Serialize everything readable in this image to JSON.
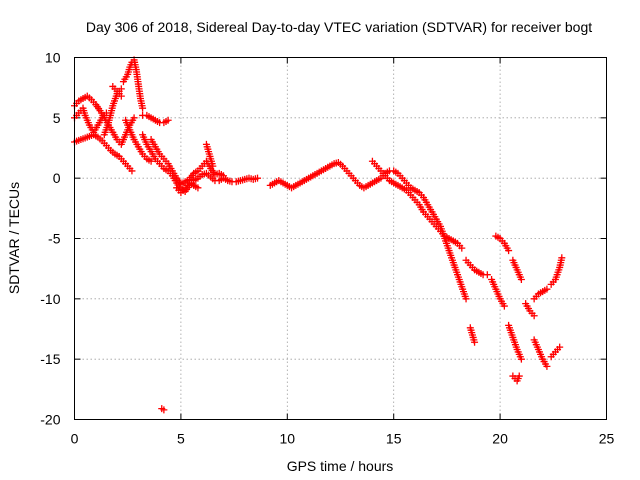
{
  "chart_data": {
    "type": "scatter",
    "title": "Day 306 of 2018, Sidereal Day-to-day VTEC variation (SDTVAR) for receiver bogt",
    "xlabel": "GPS time / hours",
    "ylabel": "SDTVAR / TECUs",
    "xlim": [
      0,
      25
    ],
    "ylim": [
      -20,
      10
    ],
    "xticks": [
      0,
      5,
      10,
      15,
      20,
      25
    ],
    "yticks": [
      10,
      5,
      0,
      -5,
      -10,
      -15,
      -20
    ],
    "grid": true,
    "marker": "+",
    "color": "#ff0000",
    "series": [
      {
        "name": "SDTVAR",
        "segments": [
          [
            [
              0.0,
              3.0
            ],
            [
              0.3,
              3.2
            ],
            [
              0.6,
              3.4
            ],
            [
              0.9,
              3.6
            ],
            [
              1.1,
              3.4
            ],
            [
              1.3,
              3.1
            ],
            [
              1.5,
              2.7
            ],
            [
              1.7,
              2.3
            ],
            [
              1.9,
              2.0
            ],
            [
              2.1,
              1.8
            ],
            [
              2.3,
              1.4
            ],
            [
              2.5,
              1.0
            ],
            [
              2.7,
              0.6
            ]
          ],
          [
            [
              0.0,
              6.0
            ],
            [
              0.2,
              6.4
            ],
            [
              0.4,
              6.6
            ],
            [
              0.6,
              6.8
            ],
            [
              0.8,
              6.5
            ],
            [
              1.0,
              6.1
            ],
            [
              1.2,
              5.6
            ],
            [
              1.4,
              5.0
            ],
            [
              1.6,
              4.4
            ],
            [
              1.8,
              3.8
            ],
            [
              2.0,
              3.2
            ],
            [
              2.2,
              2.8
            ],
            [
              2.4,
              3.6
            ],
            [
              2.6,
              4.4
            ],
            [
              2.8,
              5.0
            ]
          ],
          [
            [
              0.0,
              5.0
            ],
            [
              0.2,
              5.4
            ],
            [
              0.4,
              5.8
            ],
            [
              0.5,
              5.2
            ],
            [
              0.7,
              4.4
            ],
            [
              0.9,
              3.8
            ],
            [
              1.1,
              4.4
            ],
            [
              1.3,
              5.0
            ],
            [
              1.5,
              5.4
            ]
          ],
          [
            [
              1.4,
              3.6
            ],
            [
              1.6,
              4.6
            ],
            [
              1.8,
              6.0
            ],
            [
              2.0,
              7.0
            ],
            [
              2.2,
              7.4
            ]
          ],
          [
            [
              1.8,
              7.6
            ],
            [
              2.0,
              7.2
            ],
            [
              2.2,
              6.8
            ]
          ],
          [
            [
              2.3,
              8.0
            ],
            [
              2.5,
              8.6
            ],
            [
              2.6,
              9.2
            ],
            [
              2.7,
              9.6
            ],
            [
              2.8,
              9.8
            ],
            [
              2.9,
              9.0
            ],
            [
              3.0,
              7.8
            ],
            [
              3.1,
              6.6
            ],
            [
              3.2,
              5.8
            ]
          ],
          [
            [
              3.2,
              5.2
            ],
            [
              3.4,
              5.2
            ],
            [
              3.6,
              5.0
            ],
            [
              3.8,
              4.8
            ],
            [
              4.0,
              4.6
            ],
            [
              4.2,
              4.6
            ],
            [
              4.4,
              4.8
            ]
          ],
          [
            [
              2.4,
              4.8
            ],
            [
              2.6,
              4.0
            ],
            [
              2.8,
              3.2
            ],
            [
              3.0,
              2.6
            ],
            [
              3.2,
              2.0
            ],
            [
              3.4,
              1.6
            ],
            [
              3.6,
              1.4
            ]
          ],
          [
            [
              3.2,
              3.6
            ],
            [
              3.4,
              2.8
            ],
            [
              3.6,
              2.2
            ],
            [
              3.8,
              1.6
            ],
            [
              4.0,
              1.2
            ],
            [
              4.2,
              0.8
            ],
            [
              4.4,
              0.6
            ],
            [
              4.6,
              0.2
            ],
            [
              4.8,
              -0.4
            ],
            [
              5.0,
              -0.9
            ],
            [
              5.2,
              -1.1
            ],
            [
              5.4,
              -0.6
            ],
            [
              5.6,
              -0.2
            ],
            [
              5.8,
              0.0
            ],
            [
              6.0,
              0.3
            ],
            [
              6.2,
              0.4
            ],
            [
              6.4,
              0.1
            ],
            [
              6.6,
              -0.2
            ],
            [
              6.8,
              -0.2
            ],
            [
              7.0,
              0.0
            ],
            [
              7.2,
              -0.2
            ],
            [
              7.4,
              -0.3
            ],
            [
              7.6,
              -0.3
            ],
            [
              7.8,
              -0.2
            ],
            [
              8.0,
              -0.1
            ],
            [
              8.2,
              0.0
            ],
            [
              8.4,
              -0.1
            ],
            [
              8.6,
              0.0
            ]
          ],
          [
            [
              3.6,
              3.2
            ],
            [
              3.8,
              2.6
            ],
            [
              4.0,
              2.0
            ],
            [
              4.2,
              1.6
            ],
            [
              4.4,
              1.2
            ],
            [
              4.6,
              0.6
            ],
            [
              4.8,
              0.0
            ],
            [
              5.0,
              -0.5
            ],
            [
              5.2,
              -0.3
            ],
            [
              5.4,
              -0.1
            ],
            [
              5.6,
              0.4
            ],
            [
              5.8,
              0.6
            ],
            [
              6.0,
              1.0
            ],
            [
              6.2,
              1.4
            ],
            [
              6.4,
              0.8
            ],
            [
              6.6,
              0.3
            ],
            [
              6.8,
              0.4
            ],
            [
              7.0,
              0.2
            ]
          ],
          [
            [
              6.2,
              2.8
            ],
            [
              6.3,
              2.2
            ],
            [
              6.4,
              1.6
            ],
            [
              6.5,
              1.0
            ]
          ],
          [
            [
              4.8,
              -0.8
            ],
            [
              5.0,
              -1.2
            ],
            [
              5.2,
              -0.8
            ],
            [
              5.4,
              -0.4
            ],
            [
              5.6,
              -0.6
            ],
            [
              5.8,
              -0.8
            ]
          ],
          [
            [
              9.2,
              -0.6
            ],
            [
              9.4,
              -0.4
            ],
            [
              9.6,
              -0.2
            ],
            [
              9.8,
              -0.4
            ],
            [
              10.0,
              -0.6
            ],
            [
              10.2,
              -0.8
            ],
            [
              10.4,
              -0.6
            ],
            [
              10.6,
              -0.4
            ],
            [
              10.8,
              -0.2
            ],
            [
              11.0,
              0.0
            ],
            [
              11.2,
              0.2
            ],
            [
              11.4,
              0.4
            ],
            [
              11.6,
              0.6
            ],
            [
              11.8,
              0.8
            ],
            [
              12.0,
              1.0
            ],
            [
              12.2,
              1.2
            ],
            [
              12.4,
              1.3
            ],
            [
              12.6,
              1.0
            ],
            [
              12.8,
              0.6
            ],
            [
              13.0,
              0.2
            ],
            [
              13.2,
              -0.2
            ],
            [
              13.4,
              -0.6
            ],
            [
              13.6,
              -0.8
            ],
            [
              13.8,
              -0.6
            ],
            [
              14.0,
              -0.4
            ],
            [
              14.2,
              -0.2
            ],
            [
              14.4,
              0.0
            ],
            [
              14.6,
              0.4
            ],
            [
              14.8,
              0.6
            ],
            [
              15.0,
              0.6
            ],
            [
              15.2,
              0.4
            ],
            [
              15.4,
              0.0
            ],
            [
              15.6,
              -0.4
            ],
            [
              15.8,
              -0.8
            ],
            [
              16.0,
              -1.0
            ],
            [
              16.2,
              -1.2
            ],
            [
              16.4,
              -1.6
            ],
            [
              16.6,
              -2.2
            ],
            [
              16.8,
              -2.8
            ],
            [
              17.0,
              -3.4
            ],
            [
              17.2,
              -4.0
            ],
            [
              17.4,
              -5.0
            ],
            [
              17.6,
              -6.0
            ],
            [
              17.8,
              -7.0
            ],
            [
              18.0,
              -8.0
            ],
            [
              18.2,
              -9.0
            ],
            [
              18.4,
              -10.0
            ]
          ],
          [
            [
              14.0,
              1.4
            ],
            [
              14.2,
              1.0
            ],
            [
              14.4,
              0.6
            ],
            [
              14.6,
              0.2
            ],
            [
              14.8,
              -0.2
            ],
            [
              15.0,
              -0.4
            ],
            [
              15.2,
              -0.6
            ],
            [
              15.4,
              -0.8
            ],
            [
              15.6,
              -1.0
            ],
            [
              15.8,
              -1.4
            ],
            [
              16.0,
              -1.8
            ],
            [
              16.2,
              -2.2
            ],
            [
              16.4,
              -2.8
            ],
            [
              16.6,
              -3.2
            ],
            [
              16.8,
              -3.6
            ],
            [
              17.0,
              -4.0
            ],
            [
              17.2,
              -4.4
            ],
            [
              17.4,
              -4.8
            ],
            [
              17.6,
              -5.0
            ],
            [
              17.8,
              -5.2
            ],
            [
              18.0,
              -5.4
            ],
            [
              18.2,
              -5.8
            ]
          ],
          [
            [
              18.4,
              -6.8
            ],
            [
              18.6,
              -7.2
            ],
            [
              18.8,
              -7.6
            ],
            [
              19.0,
              -7.8
            ],
            [
              19.2,
              -8.0
            ],
            [
              19.4,
              -8.0
            ]
          ],
          [
            [
              18.6,
              -12.4
            ],
            [
              18.7,
              -13.0
            ],
            [
              18.8,
              -13.6
            ]
          ],
          [
            [
              19.6,
              -8.4
            ],
            [
              19.8,
              -9.2
            ],
            [
              20.0,
              -10.0
            ],
            [
              20.2,
              -10.6
            ]
          ],
          [
            [
              19.8,
              -4.8
            ],
            [
              20.0,
              -5.0
            ],
            [
              20.2,
              -5.4
            ],
            [
              20.4,
              -6.0
            ]
          ],
          [
            [
              20.6,
              -6.8
            ],
            [
              20.8,
              -7.6
            ],
            [
              21.0,
              -8.4
            ]
          ],
          [
            [
              20.4,
              -12.2
            ],
            [
              20.6,
              -13.2
            ],
            [
              20.8,
              -14.2
            ],
            [
              21.0,
              -15.0
            ]
          ],
          [
            [
              20.6,
              -16.4
            ],
            [
              20.8,
              -16.8
            ],
            [
              20.9,
              -16.4
            ]
          ],
          [
            [
              21.2,
              -10.4
            ],
            [
              21.4,
              -11.0
            ],
            [
              21.6,
              -11.4
            ]
          ],
          [
            [
              21.6,
              -10.0
            ],
            [
              21.8,
              -9.6
            ],
            [
              22.0,
              -9.4
            ],
            [
              22.2,
              -9.2
            ]
          ],
          [
            [
              21.6,
              -13.4
            ],
            [
              21.8,
              -14.2
            ],
            [
              22.0,
              -15.0
            ],
            [
              22.2,
              -15.6
            ]
          ],
          [
            [
              22.4,
              -8.8
            ],
            [
              22.6,
              -8.4
            ],
            [
              22.8,
              -7.4
            ],
            [
              22.9,
              -6.6
            ]
          ],
          [
            [
              22.4,
              -14.8
            ],
            [
              22.6,
              -14.4
            ],
            [
              22.8,
              -14.0
            ]
          ],
          [
            [
              4.1,
              -19.1
            ],
            [
              4.2,
              -19.2
            ]
          ]
        ]
      }
    ]
  }
}
